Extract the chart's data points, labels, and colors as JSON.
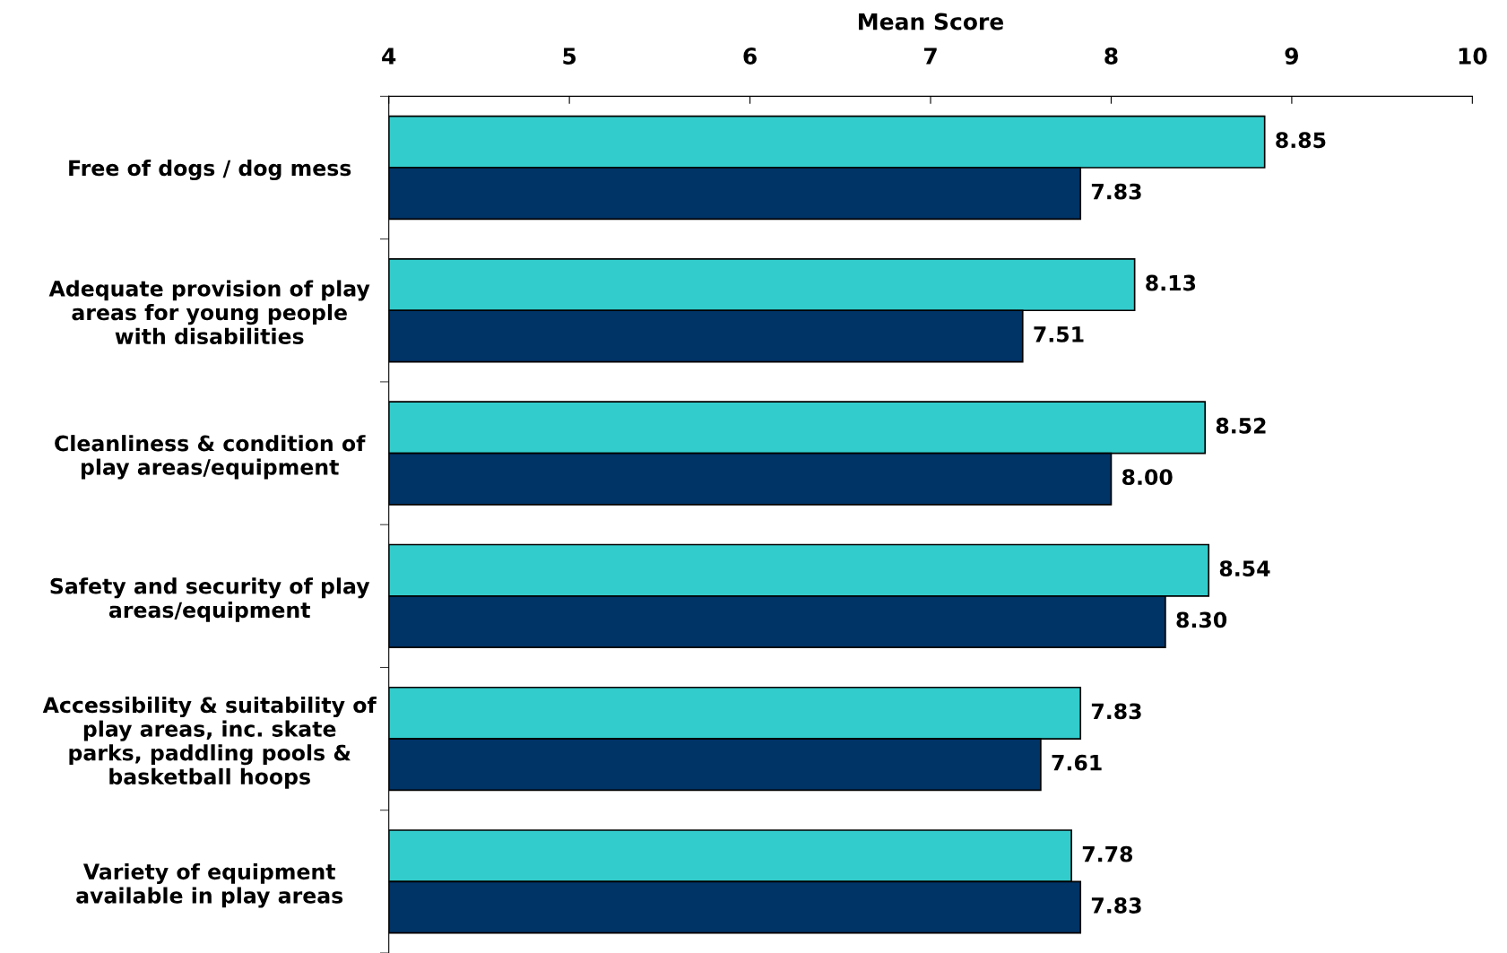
{
  "chart_data": {
    "type": "bar",
    "orientation": "horizontal",
    "xlabel": "Mean Score",
    "categories": [
      "Free of dogs / dog mess",
      "Adequate provision of play\nareas for young people\nwith disabilities",
      "Cleanliness & condition of\nplay areas/equipment",
      "Safety and security of play\nareas/equipment",
      "Accessibility & suitability of\nplay areas, inc. skate\nparks, paddling pools &\nbasketball hoops",
      "Variety of equipment\navailable in play areas"
    ],
    "series": [
      {
        "color": "#33cccc",
        "values": [
          8.85,
          8.13,
          8.52,
          8.54,
          7.83,
          7.78
        ],
        "value_labels": [
          "8.85",
          "8.13",
          "8.52",
          "8.54",
          "7.83",
          "7.78"
        ]
      },
      {
        "color": "#003366",
        "values": [
          7.83,
          7.51,
          8.0,
          8.3,
          7.61,
          7.83
        ],
        "value_labels": [
          "7.83",
          "7.51",
          "8.00",
          "8.30",
          "7.61",
          "7.83"
        ]
      }
    ],
    "xlim": [
      4,
      10
    ],
    "xticks": [
      4,
      5,
      6,
      7,
      8,
      9,
      10
    ],
    "grid": false,
    "legend": false
  }
}
